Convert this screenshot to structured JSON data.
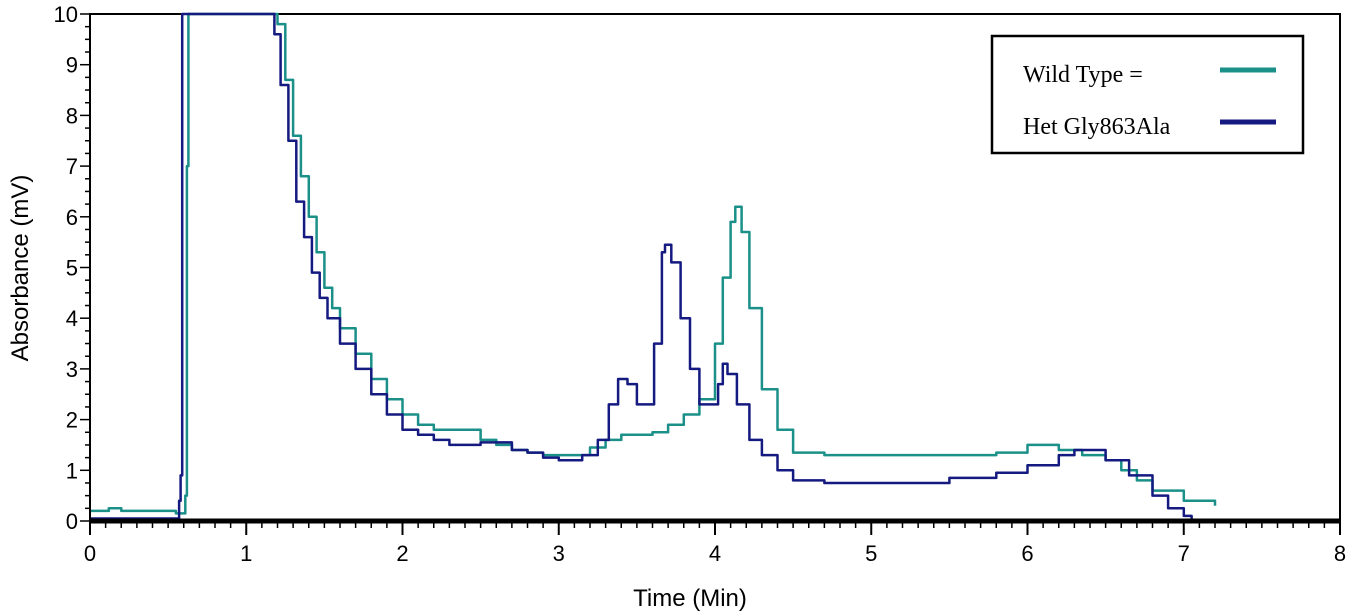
{
  "chart_data": {
    "type": "line",
    "title": "",
    "xlabel": "Time (Min)",
    "ylabel": "Absorbance (mV)",
    "xlim": [
      0,
      8
    ],
    "ylim": [
      0,
      10
    ],
    "x_ticks": [
      0,
      1,
      2,
      3,
      4,
      5,
      6,
      7,
      8
    ],
    "y_ticks": [
      0,
      1,
      2,
      3,
      4,
      5,
      6,
      7,
      8,
      9,
      10
    ],
    "grid": false,
    "legend_position": "top-right",
    "series": [
      {
        "name": "Wild Type  =",
        "color": "#1a9088",
        "points": [
          [
            0,
            0.2
          ],
          [
            0.1,
            0.2
          ],
          [
            0.12,
            0.25
          ],
          [
            0.2,
            0.2
          ],
          [
            0.45,
            0.2
          ],
          [
            0.55,
            0.15
          ],
          [
            0.59,
            0.15
          ],
          [
            0.61,
            0.5
          ],
          [
            0.62,
            7.0
          ],
          [
            0.63,
            10.0
          ],
          [
            1.18,
            10.0
          ],
          [
            1.2,
            9.8
          ],
          [
            1.25,
            8.7
          ],
          [
            1.3,
            7.6
          ],
          [
            1.35,
            6.8
          ],
          [
            1.4,
            6.0
          ],
          [
            1.45,
            5.3
          ],
          [
            1.5,
            4.6
          ],
          [
            1.55,
            4.2
          ],
          [
            1.6,
            3.8
          ],
          [
            1.7,
            3.3
          ],
          [
            1.8,
            2.8
          ],
          [
            1.9,
            2.4
          ],
          [
            2.0,
            2.1
          ],
          [
            2.1,
            1.9
          ],
          [
            2.2,
            1.8
          ],
          [
            2.3,
            1.8
          ],
          [
            2.4,
            1.8
          ],
          [
            2.5,
            1.6
          ],
          [
            2.6,
            1.5
          ],
          [
            2.7,
            1.4
          ],
          [
            2.8,
            1.35
          ],
          [
            2.9,
            1.3
          ],
          [
            3.0,
            1.3
          ],
          [
            3.1,
            1.3
          ],
          [
            3.2,
            1.45
          ],
          [
            3.3,
            1.6
          ],
          [
            3.4,
            1.7
          ],
          [
            3.5,
            1.7
          ],
          [
            3.6,
            1.75
          ],
          [
            3.7,
            1.9
          ],
          [
            3.8,
            2.1
          ],
          [
            3.9,
            2.4
          ],
          [
            4.0,
            3.5
          ],
          [
            4.05,
            4.8
          ],
          [
            4.1,
            5.9
          ],
          [
            4.13,
            6.2
          ],
          [
            4.17,
            5.7
          ],
          [
            4.22,
            4.2
          ],
          [
            4.3,
            2.6
          ],
          [
            4.4,
            1.8
          ],
          [
            4.5,
            1.35
          ],
          [
            4.7,
            1.3
          ],
          [
            5.0,
            1.3
          ],
          [
            5.5,
            1.3
          ],
          [
            5.8,
            1.35
          ],
          [
            6.0,
            1.5
          ],
          [
            6.2,
            1.4
          ],
          [
            6.35,
            1.3
          ],
          [
            6.5,
            1.2
          ],
          [
            6.6,
            1.0
          ],
          [
            6.7,
            0.8
          ],
          [
            6.8,
            0.6
          ],
          [
            7.0,
            0.4
          ],
          [
            7.2,
            0.3
          ]
        ]
      },
      {
        "name": "Het Gly863Ala",
        "color": "#141a80",
        "points": [
          [
            0,
            0.05
          ],
          [
            0.55,
            0.05
          ],
          [
            0.57,
            0.4
          ],
          [
            0.58,
            0.9
          ],
          [
            0.59,
            10.0
          ],
          [
            1.16,
            10.0
          ],
          [
            1.18,
            9.6
          ],
          [
            1.22,
            8.6
          ],
          [
            1.27,
            7.5
          ],
          [
            1.32,
            6.3
          ],
          [
            1.37,
            5.6
          ],
          [
            1.42,
            4.9
          ],
          [
            1.47,
            4.4
          ],
          [
            1.52,
            4.0
          ],
          [
            1.6,
            3.5
          ],
          [
            1.7,
            3.0
          ],
          [
            1.8,
            2.5
          ],
          [
            1.9,
            2.1
          ],
          [
            2.0,
            1.8
          ],
          [
            2.1,
            1.7
          ],
          [
            2.2,
            1.6
          ],
          [
            2.3,
            1.5
          ],
          [
            2.5,
            1.55
          ],
          [
            2.7,
            1.4
          ],
          [
            2.8,
            1.35
          ],
          [
            2.9,
            1.25
          ],
          [
            3.0,
            1.2
          ],
          [
            3.15,
            1.3
          ],
          [
            3.25,
            1.6
          ],
          [
            3.32,
            2.3
          ],
          [
            3.38,
            2.8
          ],
          [
            3.44,
            2.7
          ],
          [
            3.5,
            2.3
          ],
          [
            3.56,
            2.3
          ],
          [
            3.61,
            3.5
          ],
          [
            3.66,
            5.3
          ],
          [
            3.68,
            5.45
          ],
          [
            3.72,
            5.1
          ],
          [
            3.78,
            4.0
          ],
          [
            3.84,
            3.0
          ],
          [
            3.9,
            2.3
          ],
          [
            3.96,
            2.3
          ],
          [
            4.02,
            2.7
          ],
          [
            4.05,
            3.1
          ],
          [
            4.08,
            2.9
          ],
          [
            4.14,
            2.3
          ],
          [
            4.22,
            1.6
          ],
          [
            4.3,
            1.3
          ],
          [
            4.4,
            1.0
          ],
          [
            4.5,
            0.8
          ],
          [
            4.7,
            0.75
          ],
          [
            5.0,
            0.75
          ],
          [
            5.5,
            0.85
          ],
          [
            5.8,
            0.95
          ],
          [
            6.0,
            1.1
          ],
          [
            6.2,
            1.3
          ],
          [
            6.3,
            1.4
          ],
          [
            6.5,
            1.2
          ],
          [
            6.65,
            0.9
          ],
          [
            6.8,
            0.5
          ],
          [
            6.9,
            0.25
          ],
          [
            7.0,
            0.1
          ],
          [
            7.05,
            0.0
          ]
        ]
      }
    ]
  }
}
